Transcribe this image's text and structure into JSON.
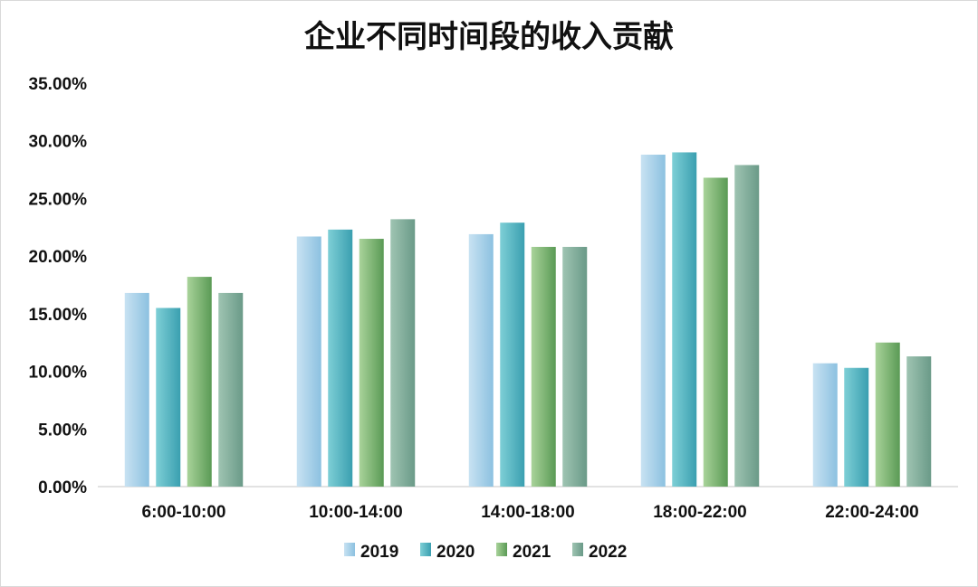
{
  "chart_data": {
    "type": "bar",
    "title": "企业不同时间段的收入贡献",
    "xlabel": "",
    "ylabel": "",
    "categories": [
      "6:00-10:00",
      "10:00-14:00",
      "14:00-18:00",
      "18:00-22:00",
      "22:00-24:00"
    ],
    "series": [
      {
        "name": "2019",
        "values": [
          16.8,
          21.7,
          21.9,
          28.8,
          10.7
        ],
        "color_top": "#c8e2f2",
        "color_bottom": "#8cc1e0"
      },
      {
        "name": "2020",
        "values": [
          15.5,
          22.3,
          22.9,
          29.0,
          10.3
        ],
        "color_top": "#7ecfd6",
        "color_bottom": "#3a9fb0"
      },
      {
        "name": "2021",
        "values": [
          18.2,
          21.5,
          20.8,
          26.8,
          12.5
        ],
        "color_top": "#a9d39a",
        "color_bottom": "#5a9a55"
      },
      {
        "name": "2022",
        "values": [
          16.8,
          23.2,
          20.8,
          27.9,
          11.3
        ],
        "color_top": "#9fc4b2",
        "color_bottom": "#6a9a88"
      }
    ],
    "yticks": [
      "0.00%",
      "5.00%",
      "10.00%",
      "15.00%",
      "20.00%",
      "25.00%",
      "30.00%",
      "35.00%"
    ],
    "ylim": [
      0,
      35
    ],
    "grid": false,
    "legend": "bottom"
  }
}
